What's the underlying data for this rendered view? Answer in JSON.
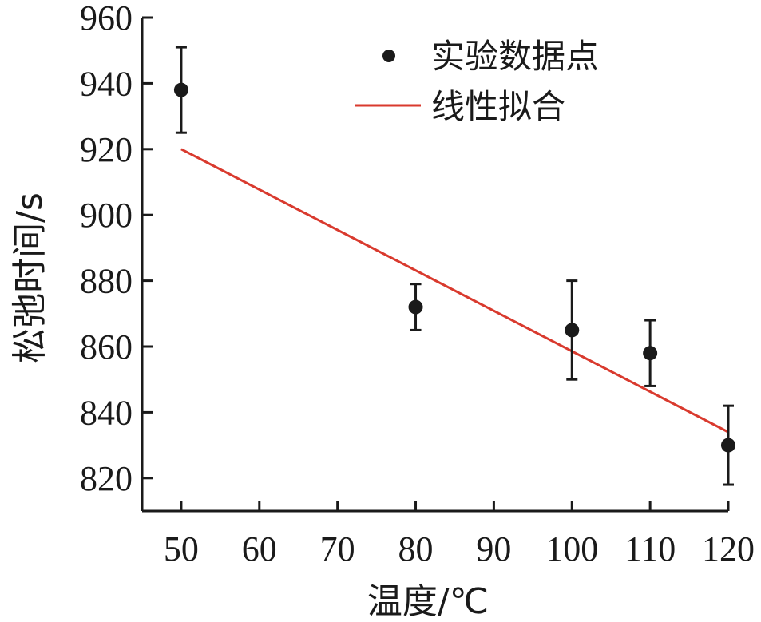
{
  "chart_data": {
    "type": "scatter",
    "xlabel": "温度/℃",
    "ylabel": "松弛时间/s",
    "xlim": [
      45,
      120
    ],
    "ylim": [
      810,
      960
    ],
    "x_ticks": [
      50,
      60,
      70,
      80,
      90,
      100,
      110,
      120
    ],
    "y_ticks": [
      820,
      840,
      860,
      880,
      900,
      920,
      940,
      960
    ],
    "grid": false,
    "legend_position": "top-right",
    "series": [
      {
        "name": "实验数据点",
        "kind": "scatter-errorbar",
        "color": "#1a1a1a",
        "x": [
          50,
          80,
          100,
          110,
          120
        ],
        "y": [
          938,
          872,
          865,
          858,
          830
        ],
        "err_low": [
          13,
          7,
          15,
          10,
          12
        ],
        "err_high": [
          13,
          7,
          15,
          10,
          12
        ]
      },
      {
        "name": "线性拟合",
        "kind": "line",
        "color": "#d93a2e",
        "x": [
          50,
          120
        ],
        "y": [
          920,
          834
        ]
      }
    ]
  }
}
